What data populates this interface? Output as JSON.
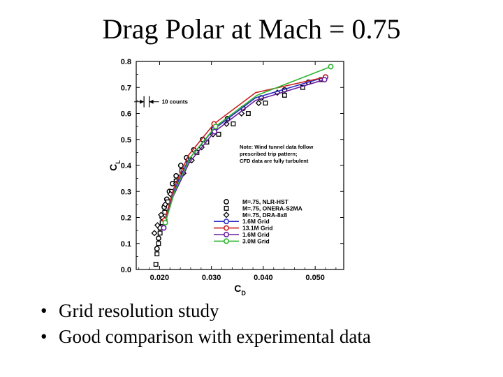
{
  "slide": {
    "title": "Drag Polar at Mach = 0.75",
    "bullets": [
      "Grid resolution study",
      "Good comparison with experimental data"
    ]
  },
  "chart_data": {
    "type": "scatter",
    "title": "Drag Polar at Mach = 0.75",
    "xlabel": "CD",
    "ylabel": "CL",
    "xlabel_main": "C",
    "xlabel_sub": "D",
    "ylabel_main": "C",
    "ylabel_sub": "L",
    "xlim": [
      0.0155,
      0.0555
    ],
    "ylim": [
      0.0,
      0.8
    ],
    "xticks": [
      0.02,
      0.03,
      0.04,
      0.05
    ],
    "xtick_labels": [
      "0.020",
      "0.030",
      "0.040",
      "0.050"
    ],
    "yticks": [
      0.0,
      0.1,
      0.2,
      0.3,
      0.4,
      0.5,
      0.6,
      0.7,
      0.8
    ],
    "ytick_labels": [
      "0.0",
      "0.1",
      "0.2",
      "0.3",
      "0.4",
      "0.5",
      "0.6",
      "0.7",
      "0.8"
    ],
    "scale_annotation": "10 counts",
    "scale_range": [
      0.017,
      0.018
    ],
    "scale_y": 0.645,
    "note": [
      "Note: Wind tunnel data follow",
      "prescribed trip pattern;",
      "CFD data are fully turbulent"
    ],
    "series": [
      {
        "name": "M=.75, NLR-HST",
        "kind": "exp",
        "marker": "circle",
        "color": "#000000",
        "x": [
          0.0195,
          0.0198,
          0.0201,
          0.0205,
          0.0209,
          0.0214,
          0.0219,
          0.0225,
          0.0232,
          0.0241,
          0.0252,
          0.0266,
          0.0283,
          0.0304,
          0.0331,
          0.0361,
          0.0396,
          0.0441,
          0.0487,
          0.052
        ],
        "y": [
          0.08,
          0.12,
          0.16,
          0.2,
          0.24,
          0.27,
          0.3,
          0.33,
          0.36,
          0.4,
          0.43,
          0.46,
          0.5,
          0.54,
          0.58,
          0.62,
          0.66,
          0.69,
          0.72,
          0.74
        ]
      },
      {
        "name": "M=.75, ONERA-S2MA",
        "kind": "exp",
        "marker": "square",
        "color": "#000000",
        "x": [
          0.0193,
          0.0195,
          0.0198,
          0.0201,
          0.0205,
          0.021,
          0.0216,
          0.0223,
          0.0232,
          0.0243,
          0.0256,
          0.0272,
          0.0291,
          0.0314,
          0.0342,
          0.0371,
          0.0404,
          0.0441,
          0.0476,
          0.0512
        ],
        "y": [
          0.02,
          0.06,
          0.1,
          0.14,
          0.18,
          0.22,
          0.26,
          0.3,
          0.34,
          0.38,
          0.42,
          0.45,
          0.49,
          0.52,
          0.56,
          0.6,
          0.64,
          0.67,
          0.7,
          0.73
        ]
      },
      {
        "name": "M=.75, DRA-8x8",
        "kind": "exp",
        "marker": "diamond",
        "color": "#000000",
        "x": [
          0.019,
          0.0196,
          0.0203,
          0.0211,
          0.0221,
          0.0232,
          0.0246,
          0.0262,
          0.0281,
          0.0303,
          0.0329,
          0.0358,
          0.0391,
          0.0427
        ],
        "y": [
          0.14,
          0.17,
          0.21,
          0.25,
          0.29,
          0.33,
          0.37,
          0.42,
          0.47,
          0.52,
          0.56,
          0.6,
          0.64,
          0.68
        ]
      },
      {
        "name": "1.6M Grid",
        "kind": "cfd",
        "marker": "circle",
        "color": "#2b2bc8",
        "x": [
          0.0208,
          0.0225,
          0.0255,
          0.0305,
          0.0385,
          0.052
        ],
        "y": [
          0.16,
          0.29,
          0.42,
          0.54,
          0.66,
          0.74
        ]
      },
      {
        "name": "13.1M Grid",
        "kind": "cfd",
        "marker": "circle",
        "color": "#c82020",
        "x": [
          0.021,
          0.0227,
          0.0256,
          0.0305,
          0.0385,
          0.052
        ],
        "y": [
          0.19,
          0.31,
          0.44,
          0.56,
          0.68,
          0.74
        ]
      },
      {
        "name": "1.6M Grid",
        "kind": "cfd",
        "marker": "circle",
        "color": "#6a1fa0",
        "x": [
          0.0208,
          0.0226,
          0.0257,
          0.0306,
          0.0385,
          0.0518
        ],
        "y": [
          0.16,
          0.28,
          0.41,
          0.53,
          0.65,
          0.73
        ]
      },
      {
        "name": "3.0M Grid",
        "kind": "cfd",
        "marker": "circle",
        "color": "#2fb52f",
        "x": [
          0.0211,
          0.0229,
          0.0259,
          0.0308,
          0.0388,
          0.053
        ],
        "y": [
          0.18,
          0.3,
          0.43,
          0.55,
          0.67,
          0.78
        ]
      }
    ]
  }
}
